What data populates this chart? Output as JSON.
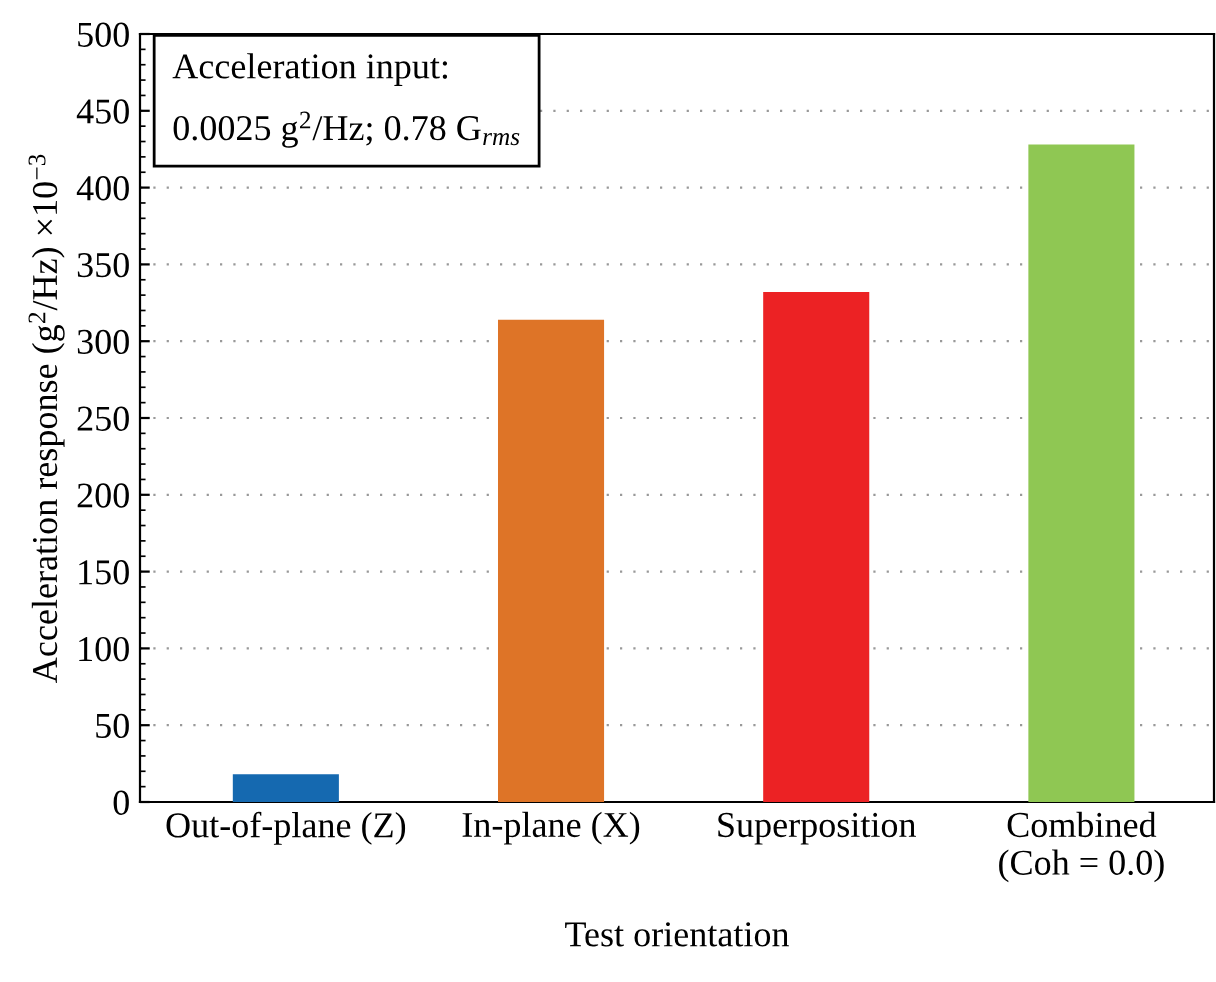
{
  "chart_data": {
    "type": "bar",
    "xlabel": "Test orientation",
    "ylabel": "Acceleration response (g$^{2}$/Hz) ×10$^{−3}$",
    "categories": [
      "Out-of-plane (Z)",
      "In-plane (X)",
      "Superposition",
      "Combined\n(Coh = 0.0)"
    ],
    "values": [
      18,
      314,
      332,
      428
    ],
    "colors": [
      "#1569b0",
      "#de7427",
      "#ec2224",
      "#8fc753"
    ],
    "ylim": [
      0,
      500
    ],
    "yticks": [
      0,
      50,
      100,
      150,
      200,
      250,
      300,
      350,
      400,
      450,
      500
    ],
    "grid": "y",
    "annotations": [
      "Acceleration input:",
      "0.0025 g$^{2}$/Hz; 0.78 G$_{rms}$"
    ]
  }
}
